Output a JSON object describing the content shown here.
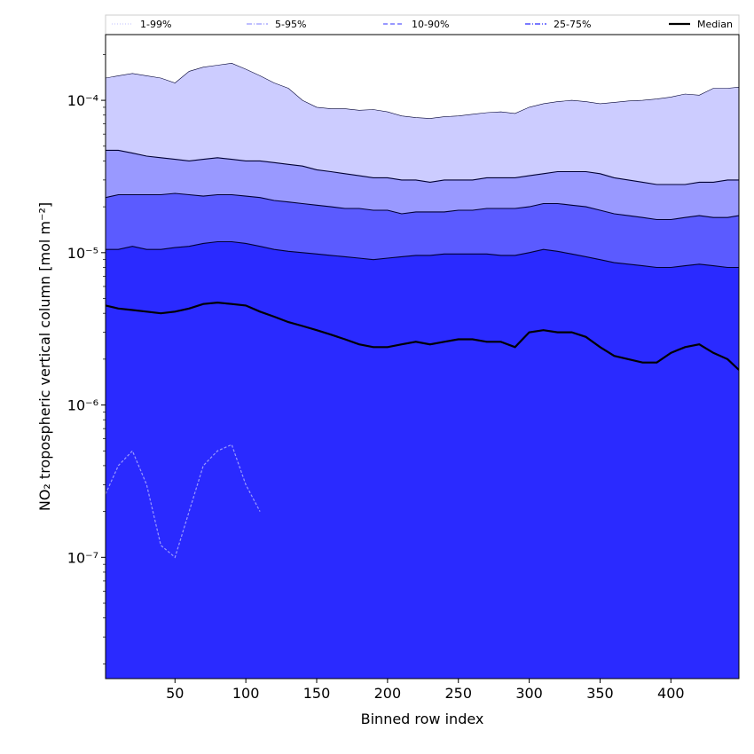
{
  "chart_data": {
    "type": "area",
    "title": "",
    "xlabel": "Binned row index",
    "ylabel": "NO₂ tropospheric vertical column [mol m⁻²]",
    "xlim": [
      1,
      448
    ],
    "ylim": [
      1.6e-08,
      0.00027
    ],
    "yscale": "log",
    "x_ticks": [
      50,
      100,
      150,
      200,
      250,
      300,
      350,
      400
    ],
    "x_tick_labels": [
      "50",
      "100",
      "150",
      "200",
      "250",
      "300",
      "350",
      "400"
    ],
    "y_ticks": [
      1e-07,
      1e-06,
      1e-05,
      0.0001
    ],
    "y_tick_labels": [
      "10⁻⁷",
      "10⁻⁶",
      "10⁻⁵",
      "10⁻⁴"
    ],
    "grid": false,
    "legend_position": "top",
    "x": [
      1,
      10,
      20,
      30,
      40,
      50,
      60,
      70,
      80,
      90,
      100,
      110,
      120,
      130,
      140,
      150,
      160,
      170,
      180,
      190,
      200,
      210,
      220,
      230,
      240,
      250,
      260,
      270,
      280,
      290,
      300,
      310,
      320,
      330,
      340,
      350,
      360,
      370,
      380,
      390,
      400,
      410,
      420,
      430,
      440,
      448
    ],
    "series": [
      {
        "name": "1-99%",
        "style": "dotted",
        "color": "#ccccff",
        "lower_values": [
          2.6e-07,
          4e-07,
          5e-07,
          3e-07,
          1.2e-07,
          1e-07,
          2e-07,
          4e-07,
          5e-07,
          5.5e-07,
          3e-07,
          2e-07,
          1.6e-08,
          1.6e-08,
          1.6e-08,
          1.6e-08,
          1.6e-08,
          1.6e-08,
          1.6e-08,
          1.6e-08,
          1.6e-08,
          1.6e-08,
          1.6e-08,
          1.6e-08,
          1.6e-08,
          1.6e-08,
          1.6e-08,
          1.6e-08,
          1.6e-08,
          1.6e-08,
          1.6e-08,
          1.6e-08,
          1.6e-08,
          1.6e-08,
          1.6e-08,
          1.6e-08,
          1.6e-08,
          1.6e-08,
          1.6e-08,
          1.6e-08,
          1.6e-08,
          1.6e-08,
          1.6e-08,
          1.6e-08,
          1.6e-08,
          1.6e-08
        ],
        "upper_values": [
          0.00014,
          0.000145,
          0.00015,
          0.000145,
          0.00014,
          0.00013,
          0.000155,
          0.000165,
          0.00017,
          0.000175,
          0.00016,
          0.000145,
          0.00013,
          0.00012,
          0.0001,
          9e-05,
          8.8e-05,
          8.8e-05,
          8.6e-05,
          8.7e-05,
          8.4e-05,
          7.9e-05,
          7.7e-05,
          7.6e-05,
          7.8e-05,
          7.9e-05,
          8.1e-05,
          8.3e-05,
          8.4e-05,
          8.2e-05,
          9e-05,
          9.5e-05,
          9.8e-05,
          0.0001,
          9.8e-05,
          9.5e-05,
          9.7e-05,
          9.9e-05,
          0.0001,
          0.000102,
          0.000105,
          0.00011,
          0.000108,
          0.00012,
          0.00012,
          0.000122
        ]
      },
      {
        "name": "5-95%",
        "style": "dash-dot",
        "color": "#9999ff",
        "lower_values": [
          1.6e-08,
          1.6e-08,
          1.6e-08,
          1.6e-08,
          1.6e-08,
          1.6e-08,
          1.6e-08,
          1.6e-08,
          1.6e-08,
          1.6e-08,
          1.6e-08,
          1.6e-08,
          1.6e-08,
          1.6e-08,
          1.6e-08,
          1.6e-08,
          1.6e-08,
          1.6e-08,
          1.6e-08,
          1.6e-08,
          1.6e-08,
          1.6e-08,
          1.6e-08,
          1.6e-08,
          1.6e-08,
          1.6e-08,
          1.6e-08,
          1.6e-08,
          1.6e-08,
          1.6e-08,
          1.6e-08,
          1.6e-08,
          1.6e-08,
          1.6e-08,
          1.6e-08,
          1.6e-08,
          1.6e-08,
          1.6e-08,
          1.6e-08,
          1.6e-08,
          1.6e-08,
          1.6e-08,
          1.6e-08,
          1.6e-08,
          1.6e-08,
          1.6e-08
        ],
        "upper_values": [
          4.7e-05,
          4.7e-05,
          4.5e-05,
          4.3e-05,
          4.2e-05,
          4.1e-05,
          4e-05,
          4.1e-05,
          4.2e-05,
          4.1e-05,
          4e-05,
          4e-05,
          3.9e-05,
          3.8e-05,
          3.7e-05,
          3.5e-05,
          3.4e-05,
          3.3e-05,
          3.2e-05,
          3.1e-05,
          3.1e-05,
          3e-05,
          3e-05,
          2.9e-05,
          3e-05,
          3e-05,
          3e-05,
          3.1e-05,
          3.1e-05,
          3.1e-05,
          3.2e-05,
          3.3e-05,
          3.4e-05,
          3.4e-05,
          3.4e-05,
          3.3e-05,
          3.1e-05,
          3e-05,
          2.9e-05,
          2.8e-05,
          2.8e-05,
          2.8e-05,
          2.9e-05,
          2.9e-05,
          3e-05,
          3e-05
        ]
      },
      {
        "name": "10-90%",
        "style": "dashed",
        "color": "#5b5bff",
        "lower_values": [
          1.6e-08,
          1.6e-08,
          1.6e-08,
          1.6e-08,
          1.6e-08,
          1.6e-08,
          1.6e-08,
          1.6e-08,
          1.6e-08,
          1.6e-08,
          1.6e-08,
          1.6e-08,
          1.6e-08,
          1.6e-08,
          1.6e-08,
          1.6e-08,
          1.6e-08,
          1.6e-08,
          1.6e-08,
          1.6e-08,
          1.6e-08,
          1.6e-08,
          1.6e-08,
          1.6e-08,
          1.6e-08,
          1.6e-08,
          1.6e-08,
          1.6e-08,
          1.6e-08,
          1.6e-08,
          1.6e-08,
          1.6e-08,
          1.6e-08,
          1.6e-08,
          1.6e-08,
          1.6e-08,
          1.6e-08,
          1.6e-08,
          1.6e-08,
          1.6e-08,
          1.6e-08,
          1.6e-08,
          1.6e-08,
          1.6e-08,
          1.6e-08,
          1.6e-08
        ],
        "upper_values": [
          2.3e-05,
          2.4e-05,
          2.4e-05,
          2.4e-05,
          2.4e-05,
          2.45e-05,
          2.4e-05,
          2.35e-05,
          2.4e-05,
          2.4e-05,
          2.35e-05,
          2.3e-05,
          2.2e-05,
          2.15e-05,
          2.1e-05,
          2.05e-05,
          2e-05,
          1.95e-05,
          1.95e-05,
          1.9e-05,
          1.9e-05,
          1.8e-05,
          1.85e-05,
          1.85e-05,
          1.85e-05,
          1.9e-05,
          1.9e-05,
          1.95e-05,
          1.95e-05,
          1.95e-05,
          2e-05,
          2.1e-05,
          2.1e-05,
          2.05e-05,
          2e-05,
          1.9e-05,
          1.8e-05,
          1.75e-05,
          1.7e-05,
          1.65e-05,
          1.65e-05,
          1.7e-05,
          1.75e-05,
          1.7e-05,
          1.7e-05,
          1.75e-05
        ]
      },
      {
        "name": "25-75%",
        "style": "dash-dot",
        "color": "#2a2aff",
        "lower_values": [
          1.6e-08,
          1.6e-08,
          1.6e-08,
          1.6e-08,
          1.6e-08,
          1.6e-08,
          1.6e-08,
          1.6e-08,
          1.6e-08,
          1.6e-08,
          1.6e-08,
          1.6e-08,
          1.6e-08,
          1.6e-08,
          1.6e-08,
          1.6e-08,
          1.6e-08,
          1.6e-08,
          1.6e-08,
          1.6e-08,
          1.6e-08,
          1.6e-08,
          1.6e-08,
          1.6e-08,
          1.6e-08,
          1.6e-08,
          1.6e-08,
          1.6e-08,
          1.6e-08,
          1.6e-08,
          1.6e-08,
          1.6e-08,
          1.6e-08,
          1.6e-08,
          1.6e-08,
          1.6e-08,
          1.6e-08,
          1.6e-08,
          1.6e-08,
          1.6e-08,
          1.6e-08,
          1.6e-08,
          1.6e-08,
          1.6e-08,
          1.6e-08,
          1.6e-08
        ],
        "upper_values": [
          1.05e-05,
          1.05e-05,
          1.1e-05,
          1.05e-05,
          1.05e-05,
          1.08e-05,
          1.1e-05,
          1.15e-05,
          1.18e-05,
          1.18e-05,
          1.15e-05,
          1.1e-05,
          1.05e-05,
          1.02e-05,
          1e-05,
          9.8e-06,
          9.6e-06,
          9.4e-06,
          9.2e-06,
          9e-06,
          9.2e-06,
          9.4e-06,
          9.6e-06,
          9.6e-06,
          9.8e-06,
          9.8e-06,
          9.8e-06,
          9.8e-06,
          9.6e-06,
          9.6e-06,
          1e-05,
          1.05e-05,
          1.02e-05,
          9.8e-06,
          9.4e-06,
          9e-06,
          8.6e-06,
          8.4e-06,
          8.2e-06,
          8e-06,
          8e-06,
          8.2e-06,
          8.4e-06,
          8.2e-06,
          8e-06,
          8e-06
        ]
      },
      {
        "name": "Median",
        "style": "solid",
        "color": "#000000",
        "values": [
          4.5e-06,
          4.3e-06,
          4.2e-06,
          4.1e-06,
          4e-06,
          4.1e-06,
          4.3e-06,
          4.6e-06,
          4.7e-06,
          4.6e-06,
          4.5e-06,
          4.1e-06,
          3.8e-06,
          3.5e-06,
          3.3e-06,
          3.1e-06,
          2.9e-06,
          2.7e-06,
          2.5e-06,
          2.4e-06,
          2.4e-06,
          2.5e-06,
          2.6e-06,
          2.5e-06,
          2.6e-06,
          2.7e-06,
          2.7e-06,
          2.6e-06,
          2.6e-06,
          2.4e-06,
          3e-06,
          3.1e-06,
          3e-06,
          3e-06,
          2.8e-06,
          2.4e-06,
          2.1e-06,
          2e-06,
          1.9e-06,
          1.9e-06,
          2.2e-06,
          2.4e-06,
          2.5e-06,
          2.2e-06,
          2e-06,
          1.7e-06
        ]
      }
    ],
    "colors": {
      "band_outer": "#ccccff",
      "band_95": "#9999ff",
      "band_90": "#5b5bff",
      "band_inner": "#2a2aff",
      "median": "#000000"
    }
  }
}
